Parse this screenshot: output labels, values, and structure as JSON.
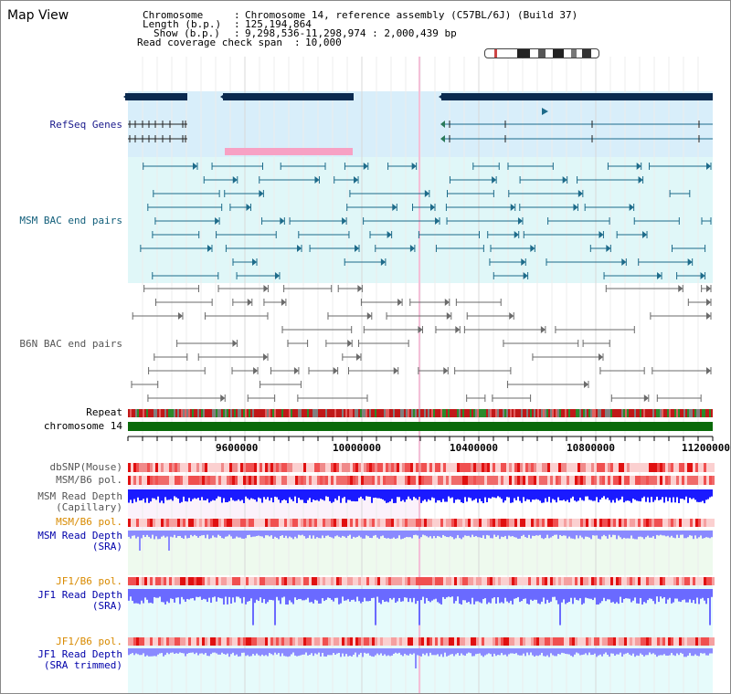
{
  "title": "Map View",
  "info": {
    "chromosome_key": "Chromosome",
    "chromosome_val": "Chromosome 14, reference assembly (C57BL/6J) (Build 37)",
    "length_key": "Length (b.p.)",
    "length_val": "125,194,864",
    "show_key": "Show (b.p.)",
    "show_val": "9,298,536-11,298,974 : 2,000,439 bp",
    "coverage_key": "Read coverage check span",
    "coverage_val": "10,000"
  },
  "labels": {
    "refseq": "RefSeq Genes",
    "msm_bac": "MSM BAC end pairs",
    "b6n_bac": "B6N BAC end pairs",
    "repeat": "Repeat",
    "chromosome": "chromosome 14",
    "dbsnp": "dbSNP(Mouse)",
    "msm_b6_pol_1": "MSM/B6 pol.",
    "msm_depth_cap_1": "MSM Read Depth",
    "msm_depth_cap_2": "(Capillary)",
    "msm_b6_pol_2": "MSM/B6 pol.",
    "msm_depth_sra_1": "MSM Read Depth",
    "msm_depth_sra_2": "(SRA)",
    "jf1_b6_pol_1": "JF1/B6 pol.",
    "jf1_depth_sra_1": "JF1 Read Depth",
    "jf1_depth_sra_2": "(SRA)",
    "jf1_b6_pol_2": "JF1/B6 pol.",
    "jf1_depth_trim_1": "JF1 Read Depth",
    "jf1_depth_trim_2": "(SRA trimmed)"
  },
  "axis": {
    "ticks": [
      "9600000",
      "10000000",
      "10400000",
      "10800000",
      "11200000"
    ]
  },
  "colors": {
    "navy": "#0b2a4f",
    "refseq_band": "#d8eefa",
    "bac_band": "#e0f7f8",
    "msm_line": "#1d6b8a",
    "b6n_line": "#6a6a6a",
    "chromosome": "#0a6a0a",
    "pol_red": "#f08080",
    "depth_blue": "#1a1aff",
    "depth_light": "#8a8aff",
    "pink_bar": "#f7a1c4"
  }
}
